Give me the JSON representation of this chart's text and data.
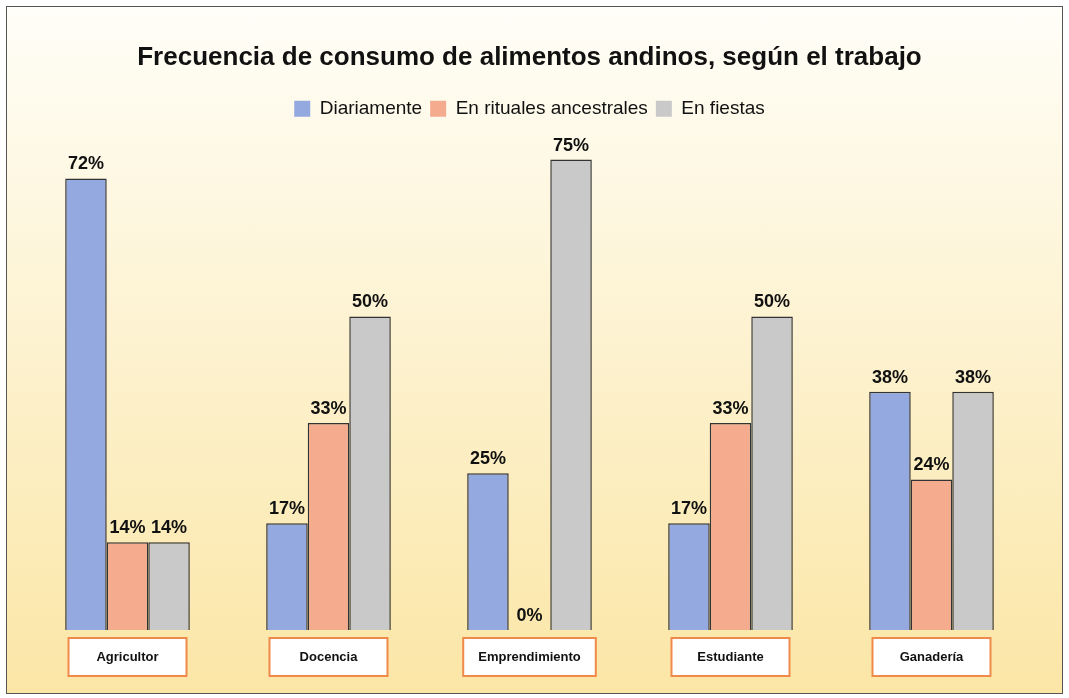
{
  "chart_data": {
    "type": "bar",
    "title": "Frecuencia de consumo de alimentos andinos, según el trabajo",
    "categories": [
      "Agricultor",
      "Docencia",
      "Emprendimiento",
      "Estudiante",
      "Ganadería"
    ],
    "series": [
      {
        "name": "Diariamente",
        "color": "#94a9df",
        "values": [
          72,
          17,
          25,
          17,
          38
        ],
        "value_labels": [
          "72%",
          "17%",
          "25%",
          "17%",
          "38%"
        ]
      },
      {
        "name": "En rituales ancestrales",
        "color": "#f5ab8e",
        "values": [
          14,
          33,
          0,
          33,
          24
        ],
        "value_labels": [
          "14%",
          "33%",
          "0%",
          "33%",
          "24%"
        ]
      },
      {
        "name": "En fiestas",
        "color": "#c9c9c9",
        "values": [
          14,
          50,
          75,
          50,
          38
        ],
        "value_labels": [
          "14%",
          "50%",
          "75%",
          "50%",
          "38%"
        ]
      }
    ],
    "legend": "top",
    "grid": false
  }
}
